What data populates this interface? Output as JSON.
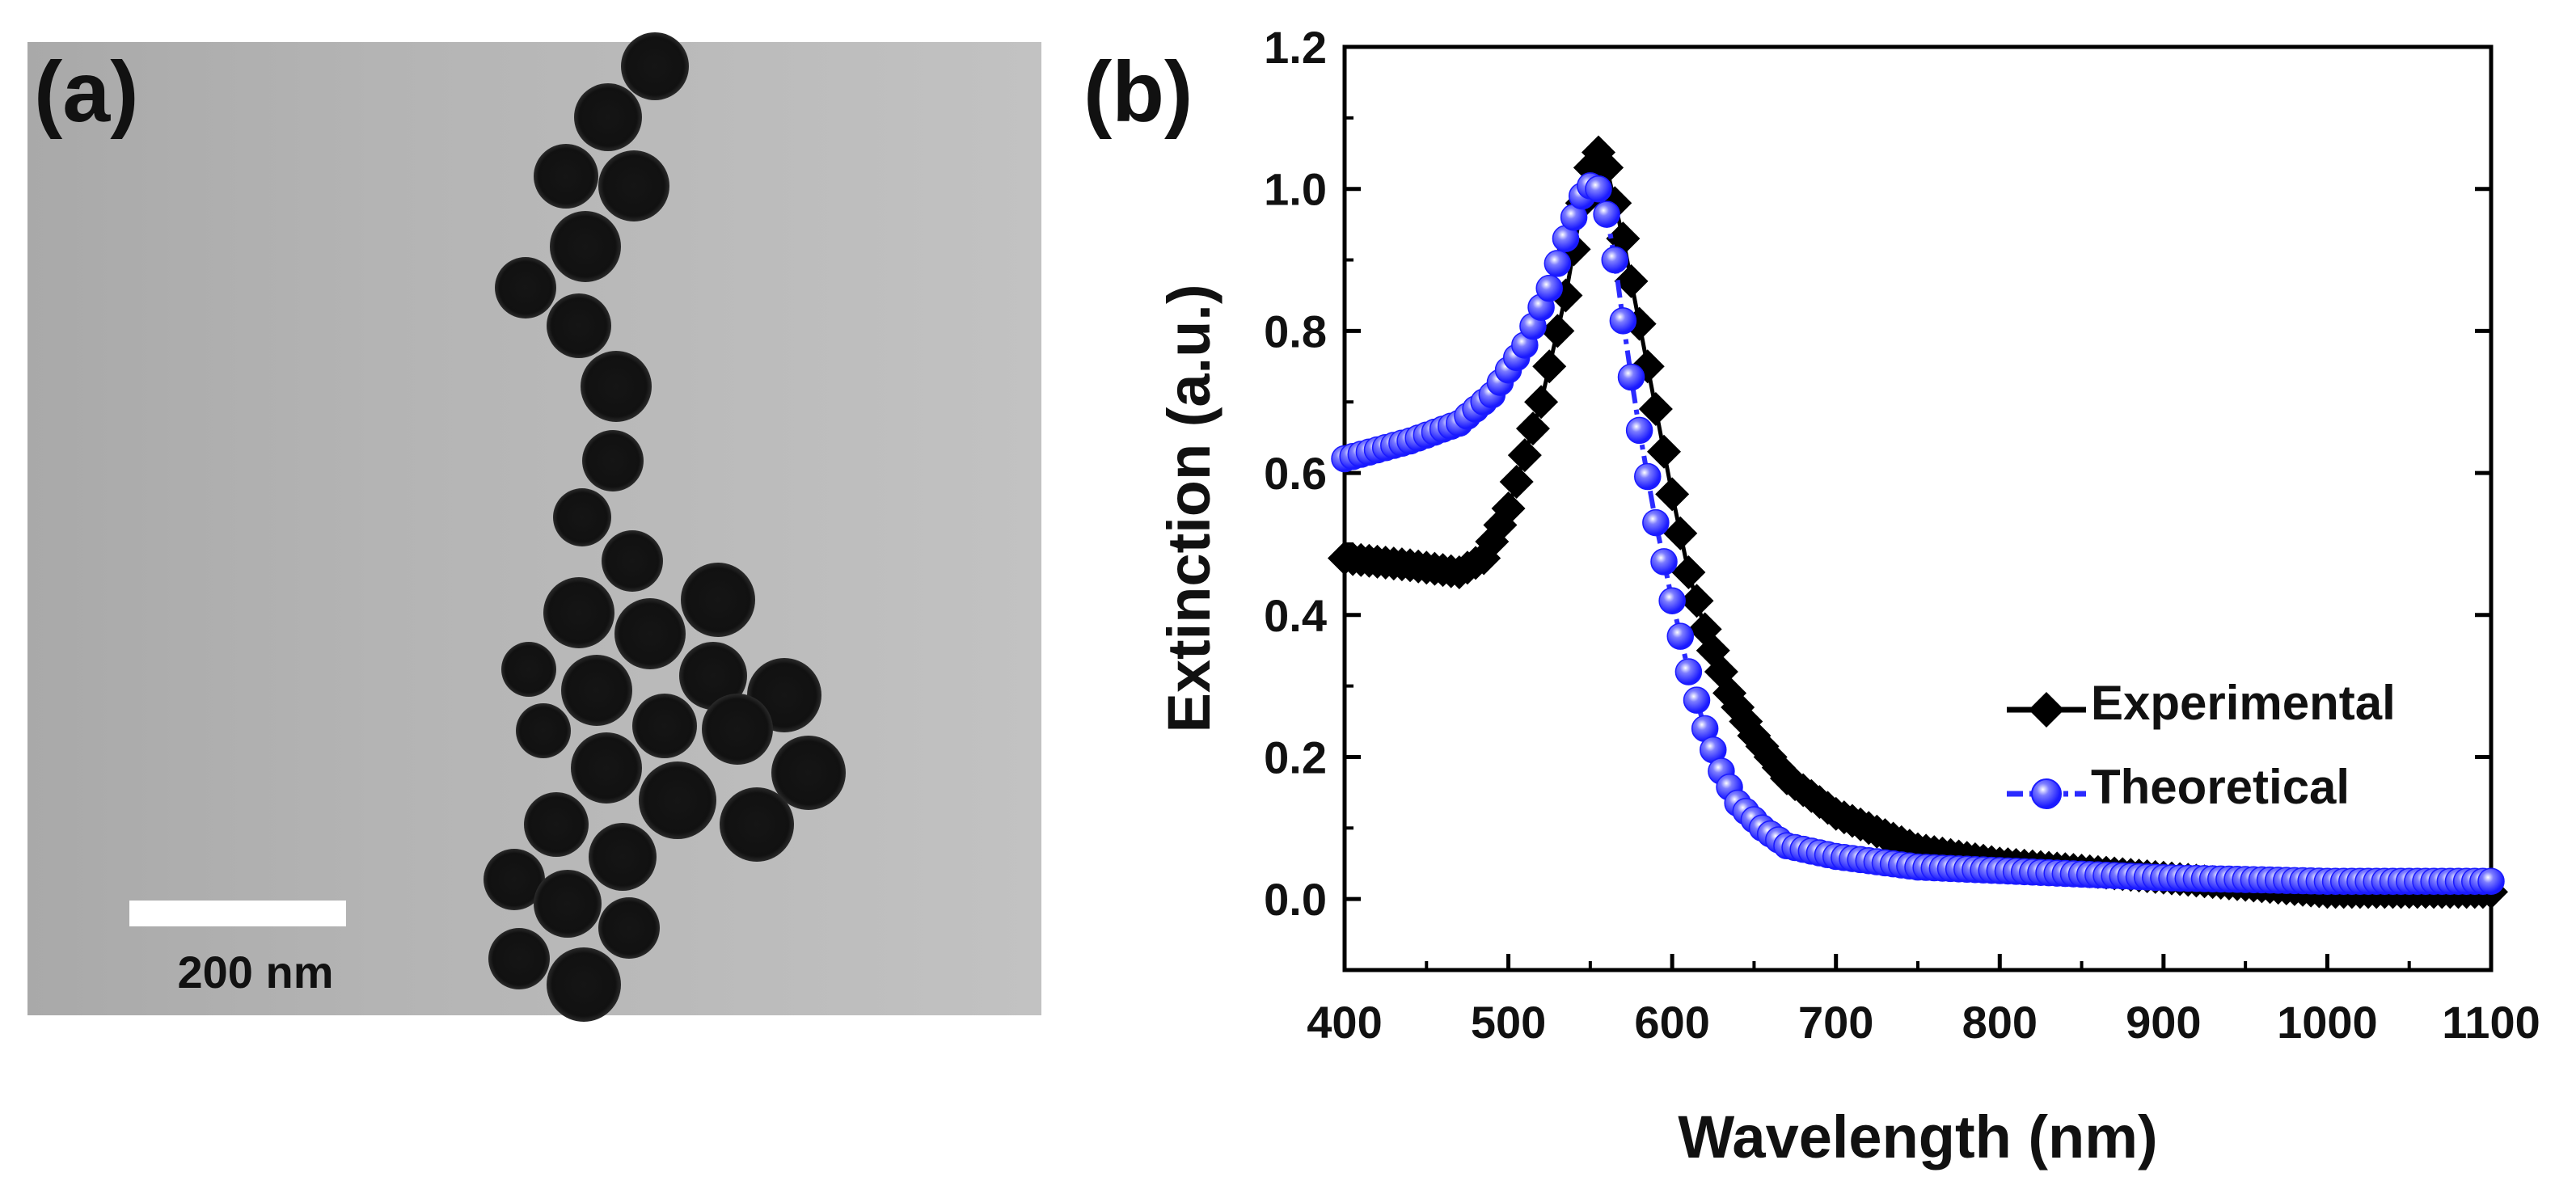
{
  "panel_a": {
    "label": "(a)",
    "scale_bar_label": "200 nm",
    "image_background": "#b8b8b8",
    "particle_color": "#151515"
  },
  "panel_b": {
    "label": "(b)"
  },
  "chart_data": {
    "type": "scatter",
    "title": "",
    "xlabel": "Wavelength (nm)",
    "ylabel": "Extinction (a.u.)",
    "xlim": [
      400,
      1100
    ],
    "ylim": [
      -0.1,
      1.2
    ],
    "xticks": [
      400,
      500,
      600,
      700,
      800,
      900,
      1000,
      1100
    ],
    "yticks": [
      0.0,
      0.2,
      0.4,
      0.6,
      0.8,
      1.0,
      1.2
    ],
    "xtick_labels": [
      "400",
      "500",
      "600",
      "700",
      "800",
      "900",
      "1000",
      "1100"
    ],
    "ytick_labels": [
      "0.0",
      "0.2",
      "0.4",
      "0.6",
      "0.8",
      "1.0",
      "1.2"
    ],
    "grid": false,
    "legend_position": "right",
    "series": [
      {
        "name": "Experimental",
        "color": "#000000",
        "marker": "diamond",
        "x_start": 400,
        "x_end": 1100,
        "x_step": 5,
        "anchors": [
          [
            400,
            0.48
          ],
          [
            440,
            0.47
          ],
          [
            470,
            0.46
          ],
          [
            485,
            0.48
          ],
          [
            500,
            0.55
          ],
          [
            520,
            0.7
          ],
          [
            535,
            0.85
          ],
          [
            545,
            0.98
          ],
          [
            553,
            1.06
          ],
          [
            560,
            1.03
          ],
          [
            570,
            0.93
          ],
          [
            580,
            0.81
          ],
          [
            590,
            0.69
          ],
          [
            600,
            0.57
          ],
          [
            610,
            0.46
          ],
          [
            620,
            0.38
          ],
          [
            635,
            0.29
          ],
          [
            650,
            0.23
          ],
          [
            670,
            0.17
          ],
          [
            700,
            0.12
          ],
          [
            750,
            0.07
          ],
          [
            800,
            0.05
          ],
          [
            900,
            0.03
          ],
          [
            1000,
            0.01
          ],
          [
            1100,
            0.01
          ]
        ]
      },
      {
        "name": "Theoretical",
        "color": "#2b2bff",
        "marker": "circle",
        "x_start": 400,
        "x_end": 1100,
        "x_step": 5,
        "anchors": [
          [
            400,
            0.62
          ],
          [
            440,
            0.645
          ],
          [
            470,
            0.67
          ],
          [
            490,
            0.71
          ],
          [
            510,
            0.78
          ],
          [
            525,
            0.86
          ],
          [
            535,
            0.93
          ],
          [
            545,
            0.99
          ],
          [
            552,
            1.01
          ],
          [
            558,
            0.99
          ],
          [
            565,
            0.9
          ],
          [
            572,
            0.78
          ],
          [
            580,
            0.66
          ],
          [
            590,
            0.53
          ],
          [
            600,
            0.42
          ],
          [
            610,
            0.32
          ],
          [
            620,
            0.24
          ],
          [
            630,
            0.18
          ],
          [
            640,
            0.135
          ],
          [
            655,
            0.1
          ],
          [
            670,
            0.075
          ],
          [
            700,
            0.06
          ],
          [
            750,
            0.045
          ],
          [
            800,
            0.04
          ],
          [
            900,
            0.03
          ],
          [
            1000,
            0.025
          ],
          [
            1100,
            0.025
          ]
        ]
      }
    ]
  }
}
